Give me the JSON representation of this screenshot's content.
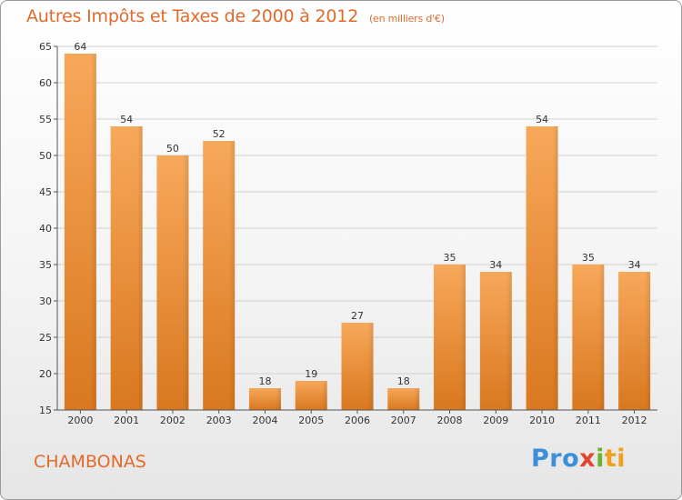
{
  "page": {
    "title": "Autres Impôts et Taxes de 2000 à 2012",
    "subtitle": "(en milliers d'€)",
    "commune": "CHAMBONAS",
    "logo": [
      "Pro",
      "x",
      "i",
      "ti"
    ]
  },
  "chart_data": {
    "type": "bar",
    "title": "Autres Impôts et Taxes de 2000 à 2012",
    "subtitle": "(en milliers d'€)",
    "categories": [
      "2000",
      "2001",
      "2002",
      "2003",
      "2004",
      "2005",
      "2006",
      "2007",
      "2008",
      "2009",
      "2010",
      "2011",
      "2012"
    ],
    "values": [
      64,
      54,
      50,
      52,
      18,
      19,
      27,
      18,
      35,
      34,
      54,
      35,
      34
    ],
    "ylim": [
      15,
      65
    ],
    "yticks": [
      15,
      20,
      25,
      30,
      35,
      40,
      45,
      50,
      55,
      60,
      65
    ],
    "grid": true,
    "xlabel": "",
    "ylabel": ""
  },
  "colors": {
    "bar_light": "#f7a85a",
    "bar_dark": "#d9781f",
    "text_accent": "#e26a2c"
  }
}
